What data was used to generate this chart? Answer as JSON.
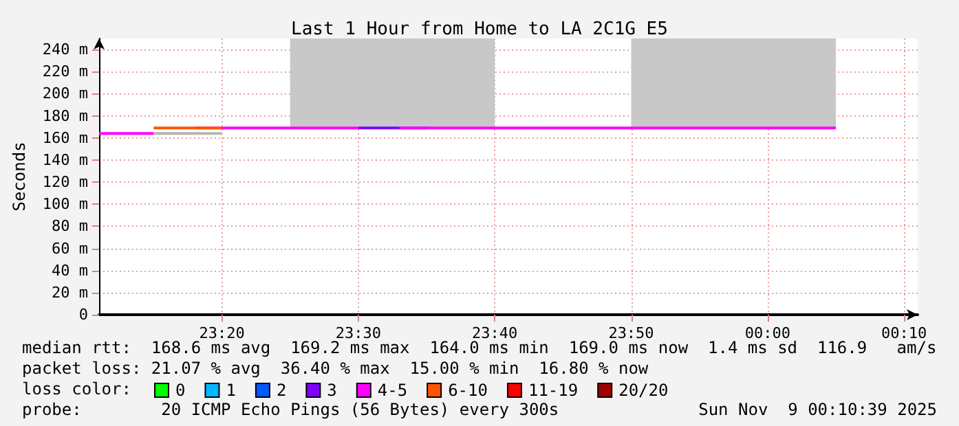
{
  "chart_data": {
    "type": "step",
    "title": "Last 1 Hour from Home to LA 2C1G E5",
    "ylabel": "Seconds",
    "legend_title": "loss color:",
    "xlim": [
      "2025-11-08T23:11",
      "2025-11-09T00:11"
    ],
    "xticks": [
      {
        "value": "2025-11-08T23:20",
        "label": "23:20"
      },
      {
        "value": "2025-11-08T23:30",
        "label": "23:30"
      },
      {
        "value": "2025-11-08T23:40",
        "label": "23:40"
      },
      {
        "value": "2025-11-08T23:50",
        "label": "23:50"
      },
      {
        "value": "2025-11-09T00:00",
        "label": "00:00"
      },
      {
        "value": "2025-11-09T00:10",
        "label": "00:10"
      }
    ],
    "ylim": [
      0,
      250
    ],
    "yticks": [
      0,
      {
        "value": 20,
        "label": "20 m"
      },
      {
        "value": 40,
        "label": "40 m"
      },
      {
        "value": 60,
        "label": "60 m"
      },
      {
        "value": 80,
        "label": "80 m"
      },
      {
        "value": 100,
        "label": "100 m"
      },
      {
        "value": 120,
        "label": "120 m"
      },
      {
        "value": 140,
        "label": "140 m"
      },
      {
        "value": 160,
        "label": "160 m"
      },
      {
        "value": 180,
        "label": "180 m"
      },
      {
        "value": 200,
        "label": "200 m"
      },
      {
        "value": 220,
        "label": "220 m"
      },
      {
        "value": 240,
        "label": "240 m"
      }
    ],
    "grid": true,
    "legend": "bottom",
    "series": [
      {
        "name": "0",
        "color": "#00ff00"
      },
      {
        "name": "1",
        "color": "#00b8ff"
      },
      {
        "name": "2",
        "color": "#0059ff"
      },
      {
        "name": "3",
        "color": "#7e00ff",
        "x": [
          "2025-11-08T23:30",
          "2025-11-08T23:35"
        ],
        "values": [
          169,
          169
        ]
      },
      {
        "name": "4-5",
        "color": "#ff00ff",
        "x": [
          "2025-11-08T23:11",
          "2025-11-08T23:15",
          "2025-11-08T23:18",
          "2025-11-08T23:20",
          "2025-11-08T23:30",
          "2025-11-08T23:33",
          "2025-11-08T23:35",
          "2025-11-09T00:05"
        ],
        "values": [
          164,
          164,
          null,
          169,
          169,
          null,
          169,
          169
        ]
      },
      {
        "name": "6-10",
        "color": "#ff5500",
        "x": [
          "2025-11-08T23:15",
          "2025-11-08T23:20"
        ],
        "values": [
          169,
          169
        ]
      },
      {
        "name": "11-19",
        "color": "#ff0000"
      },
      {
        "name": "20/20",
        "color": "#a10000"
      },
      {
        "color": "#b4b4b4",
        "x": [
          "2025-11-08T23:15",
          "2025-11-08T23:20"
        ],
        "values": [
          164,
          164
        ]
      }
    ],
    "bands": [
      {
        "axis": "x",
        "from": "2025-11-08T23:25",
        "to": "2025-11-08T23:40",
        "color": "#c8c8c8"
      },
      {
        "axis": "x",
        "from": "2025-11-08T23:50",
        "to": "2025-11-09T00:05",
        "color": "#c8c8c8"
      }
    ],
    "annotations": [
      "median rtt:  168.6 ms avg  169.2 ms max  164.0 ms min  169.0 ms now  1.4 ms sd  116.9   am/s",
      "packet loss: 21.07 % avg  36.40 % max  15.00 % min  16.80 % now",
      "probe:        20 ICMP Echo Pings (56 Bytes) every 300s",
      "Sun Nov  9 00:10:39 2025"
    ]
  }
}
